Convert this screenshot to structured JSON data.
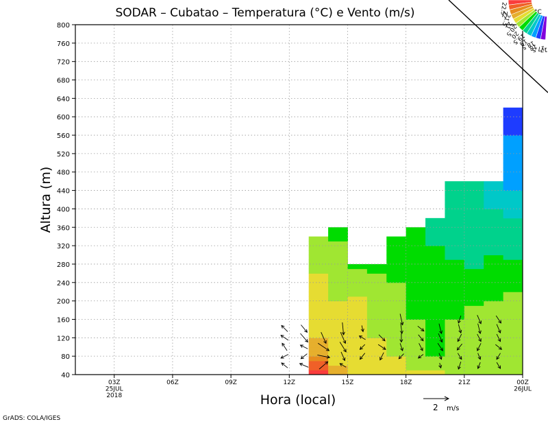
{
  "chart_data": {
    "type": "heatmap",
    "title": "SODAR  –  Cubatao  –  Temperatura (°C) e Vento (m/s)",
    "xlabel": "Hora (local)",
    "ylabel": "Altura (m)",
    "credit": "GrADS: COLA/IGES",
    "ylim": [
      40,
      800
    ],
    "xlim": [
      1,
      24
    ],
    "yticks": [
      40,
      80,
      120,
      160,
      200,
      240,
      280,
      320,
      360,
      400,
      440,
      480,
      520,
      560,
      600,
      640,
      680,
      720,
      760,
      800
    ],
    "xticks": [
      {
        "x": 3,
        "lines": [
          "03Z",
          "25JUL",
          "2018"
        ]
      },
      {
        "x": 6,
        "lines": [
          "06Z"
        ]
      },
      {
        "x": 9,
        "lines": [
          "09Z"
        ]
      },
      {
        "x": 12,
        "lines": [
          "12Z"
        ]
      },
      {
        "x": 15,
        "lines": [
          "15Z"
        ]
      },
      {
        "x": 18,
        "lines": [
          "18Z"
        ]
      },
      {
        "x": 21,
        "lines": [
          "21Z"
        ]
      },
      {
        "x": 24,
        "lines": [
          "00Z",
          "26JUL"
        ]
      }
    ],
    "grid": true,
    "legend": {
      "position": "top-right",
      "unit": "°C",
      "levels": [
        "22.5",
        "22",
        "21.5",
        "21",
        "20.5",
        "20",
        "19.5",
        "19",
        "18.5",
        "18",
        "17.5",
        "17"
      ],
      "colors": [
        "#fa3c3c",
        "#f06028",
        "#e68c1e",
        "#e6af2d",
        "#e6dc32",
        "#a0e632",
        "#00dc00",
        "#00d28c",
        "#00c8c8",
        "#00a0ff",
        "#1e3cff",
        "#8200dc"
      ]
    },
    "wind_reference": {
      "label": "2",
      "unit": "m/s"
    },
    "series": [
      {
        "hour": 14,
        "top": 340,
        "temps": [
          [
            40,
            22.6
          ],
          [
            60,
            22.4
          ],
          [
            80,
            21.5
          ],
          [
            120,
            21.0
          ],
          [
            160,
            20.6
          ],
          [
            240,
            20.6
          ],
          [
            300,
            20.3
          ],
          [
            340,
            20.0
          ]
        ]
      },
      {
        "hour": 15,
        "top": 360,
        "temps": [
          [
            40,
            21.3
          ],
          [
            80,
            20.8
          ],
          [
            160,
            20.6
          ],
          [
            240,
            20.4
          ],
          [
            300,
            20.1
          ],
          [
            360,
            19.9
          ]
        ]
      },
      {
        "hour": 16,
        "top": 280,
        "temps": [
          [
            40,
            21.0
          ],
          [
            80,
            20.7
          ],
          [
            200,
            20.6
          ],
          [
            240,
            20.3
          ],
          [
            280,
            19.9
          ]
        ]
      },
      {
        "hour": 17,
        "top": 280,
        "temps": [
          [
            40,
            20.9
          ],
          [
            80,
            20.6
          ],
          [
            160,
            20.4
          ],
          [
            240,
            20.1
          ],
          [
            280,
            19.9
          ]
        ]
      },
      {
        "hour": 18,
        "top": 340,
        "temps": [
          [
            40,
            20.7
          ],
          [
            80,
            20.5
          ],
          [
            160,
            20.2
          ],
          [
            240,
            20.0
          ],
          [
            300,
            19.8
          ],
          [
            340,
            19.7
          ]
        ]
      },
      {
        "hour": 19,
        "top": 360,
        "temps": [
          [
            40,
            20.6
          ],
          [
            80,
            20.3
          ],
          [
            160,
            20.0
          ],
          [
            240,
            19.8
          ],
          [
            300,
            19.6
          ],
          [
            360,
            19.5
          ]
        ]
      },
      {
        "hour": 20,
        "top": 380,
        "temps": [
          [
            40,
            20.6
          ],
          [
            80,
            20.0
          ],
          [
            160,
            19.9
          ],
          [
            240,
            19.7
          ],
          [
            320,
            19.5
          ],
          [
            380,
            19.3
          ]
        ]
      },
      {
        "hour": 21,
        "top": 460,
        "temps": [
          [
            40,
            20.4
          ],
          [
            80,
            20.1
          ],
          [
            160,
            20.0
          ],
          [
            240,
            19.7
          ],
          [
            320,
            19.4
          ],
          [
            400,
            19.1
          ],
          [
            460,
            19.0
          ]
        ]
      },
      {
        "hour": 22,
        "top": 460,
        "temps": [
          [
            40,
            20.4
          ],
          [
            80,
            20.0
          ],
          [
            160,
            20.2
          ],
          [
            240,
            19.7
          ],
          [
            320,
            19.2
          ],
          [
            400,
            19.1
          ],
          [
            460,
            19.0
          ]
        ]
      },
      {
        "hour": 23,
        "top": 460,
        "temps": [
          [
            40,
            20.4
          ],
          [
            80,
            20.2
          ],
          [
            160,
            20.1
          ],
          [
            240,
            19.9
          ],
          [
            320,
            19.4
          ],
          [
            400,
            19.0
          ],
          [
            460,
            18.8
          ]
        ]
      },
      {
        "hour": 24,
        "top": 620,
        "temps": [
          [
            40,
            20.5
          ],
          [
            80,
            20.3
          ],
          [
            160,
            20.3
          ],
          [
            240,
            19.9
          ],
          [
            320,
            19.3
          ],
          [
            400,
            18.9
          ],
          [
            440,
            18.5
          ],
          [
            560,
            18.0
          ],
          [
            620,
            17.9
          ]
        ]
      }
    ],
    "wind": [
      {
        "hour": 12,
        "height": 140,
        "u": -0.5,
        "v": 0.5
      },
      {
        "hour": 12,
        "height": 120,
        "u": -0.6,
        "v": 0.4
      },
      {
        "hour": 12,
        "height": 100,
        "u": -0.4,
        "v": 0.6
      },
      {
        "hour": 12,
        "height": 80,
        "u": -0.6,
        "v": -0.3
      },
      {
        "hour": 12,
        "height": 60,
        "u": -0.5,
        "v": 0.4
      },
      {
        "hour": 13,
        "height": 140,
        "u": 0.5,
        "v": -0.6
      },
      {
        "hour": 13,
        "height": 120,
        "u": 0.6,
        "v": -0.7
      },
      {
        "hour": 13,
        "height": 100,
        "u": -0.6,
        "v": 0.3
      },
      {
        "hour": 13,
        "height": 80,
        "u": -0.5,
        "v": -0.4
      },
      {
        "hour": 13,
        "height": 60,
        "u": -0.7,
        "v": 0.3
      },
      {
        "hour": 14,
        "height": 120,
        "u": 0.4,
        "v": -0.9
      },
      {
        "hour": 14,
        "height": 100,
        "u": 0.9,
        "v": -0.6
      },
      {
        "hour": 14,
        "height": 80,
        "u": 1.0,
        "v": -0.2
      },
      {
        "hour": 14,
        "height": 60,
        "u": 0.7,
        "v": 0.6
      },
      {
        "hour": 15,
        "height": 140,
        "u": 0.1,
        "v": -1.0
      },
      {
        "hour": 15,
        "height": 120,
        "u": 0.4,
        "v": -0.9
      },
      {
        "hour": 15,
        "height": 100,
        "u": 0.5,
        "v": -0.8
      },
      {
        "hour": 15,
        "height": 80,
        "u": 0.3,
        "v": -0.7
      },
      {
        "hour": 15,
        "height": 60,
        "u": -0.5,
        "v": 0.3
      },
      {
        "hour": 16,
        "height": 140,
        "u": 0.1,
        "v": -0.5
      },
      {
        "hour": 16,
        "height": 120,
        "u": -0.5,
        "v": 0.3
      },
      {
        "hour": 16,
        "height": 100,
        "u": -0.4,
        "v": -0.4
      },
      {
        "hour": 16,
        "height": 80,
        "u": -0.4,
        "v": -0.5
      },
      {
        "hour": 17,
        "height": 120,
        "u": 0.5,
        "v": -0.5
      },
      {
        "hour": 17,
        "height": 100,
        "u": 0.6,
        "v": -0.4
      },
      {
        "hour": 17,
        "height": 80,
        "u": -0.3,
        "v": -0.6
      },
      {
        "hour": 18,
        "height": 160,
        "u": 0.2,
        "v": -0.9
      },
      {
        "hour": 18,
        "height": 140,
        "u": 0.1,
        "v": -0.8
      },
      {
        "hour": 18,
        "height": 120,
        "u": 0.0,
        "v": -0.7
      },
      {
        "hour": 18,
        "height": 100,
        "u": 0.2,
        "v": -0.6
      },
      {
        "hour": 18,
        "height": 80,
        "u": -0.4,
        "v": -0.4
      },
      {
        "hour": 19,
        "height": 140,
        "u": 0.5,
        "v": -0.4
      },
      {
        "hour": 19,
        "height": 120,
        "u": 0.4,
        "v": -0.5
      },
      {
        "hour": 19,
        "height": 100,
        "u": 0.3,
        "v": -0.6
      },
      {
        "hour": 19,
        "height": 80,
        "u": -0.4,
        "v": -0.3
      },
      {
        "hour": 20,
        "height": 140,
        "u": 0.2,
        "v": -0.8
      },
      {
        "hour": 20,
        "height": 120,
        "u": 0.3,
        "v": -0.7
      },
      {
        "hour": 20,
        "height": 100,
        "u": 0.4,
        "v": -0.6
      },
      {
        "hour": 20,
        "height": 80,
        "u": 0.2,
        "v": -0.5
      },
      {
        "hour": 20,
        "height": 60,
        "u": 0.1,
        "v": -0.4
      },
      {
        "hour": 21,
        "height": 160,
        "u": -0.2,
        "v": -0.6
      },
      {
        "hour": 21,
        "height": 140,
        "u": 0.2,
        "v": -0.7
      },
      {
        "hour": 21,
        "height": 120,
        "u": -0.3,
        "v": -0.6
      },
      {
        "hour": 21,
        "height": 100,
        "u": -0.4,
        "v": -0.5
      },
      {
        "hour": 21,
        "height": 80,
        "u": 0.3,
        "v": -0.5
      },
      {
        "hour": 21,
        "height": 60,
        "u": -0.2,
        "v": -0.6
      },
      {
        "hour": 22,
        "height": 160,
        "u": 0.3,
        "v": -0.7
      },
      {
        "hour": 22,
        "height": 140,
        "u": 0.2,
        "v": -0.8
      },
      {
        "hour": 22,
        "height": 120,
        "u": 0.3,
        "v": -0.6
      },
      {
        "hour": 22,
        "height": 100,
        "u": -0.3,
        "v": -0.6
      },
      {
        "hour": 22,
        "height": 80,
        "u": 0.2,
        "v": -0.5
      },
      {
        "hour": 22,
        "height": 60,
        "u": -0.2,
        "v": -0.5
      },
      {
        "hour": 23,
        "height": 160,
        "u": 0.4,
        "v": -0.6
      },
      {
        "hour": 23,
        "height": 140,
        "u": 0.3,
        "v": -0.7
      },
      {
        "hour": 23,
        "height": 120,
        "u": 0.3,
        "v": -0.6
      },
      {
        "hour": 23,
        "height": 100,
        "u": 0.5,
        "v": -0.4
      },
      {
        "hour": 23,
        "height": 80,
        "u": -0.3,
        "v": -0.5
      },
      {
        "hour": 23,
        "height": 60,
        "u": 0.3,
        "v": -0.5
      }
    ]
  }
}
